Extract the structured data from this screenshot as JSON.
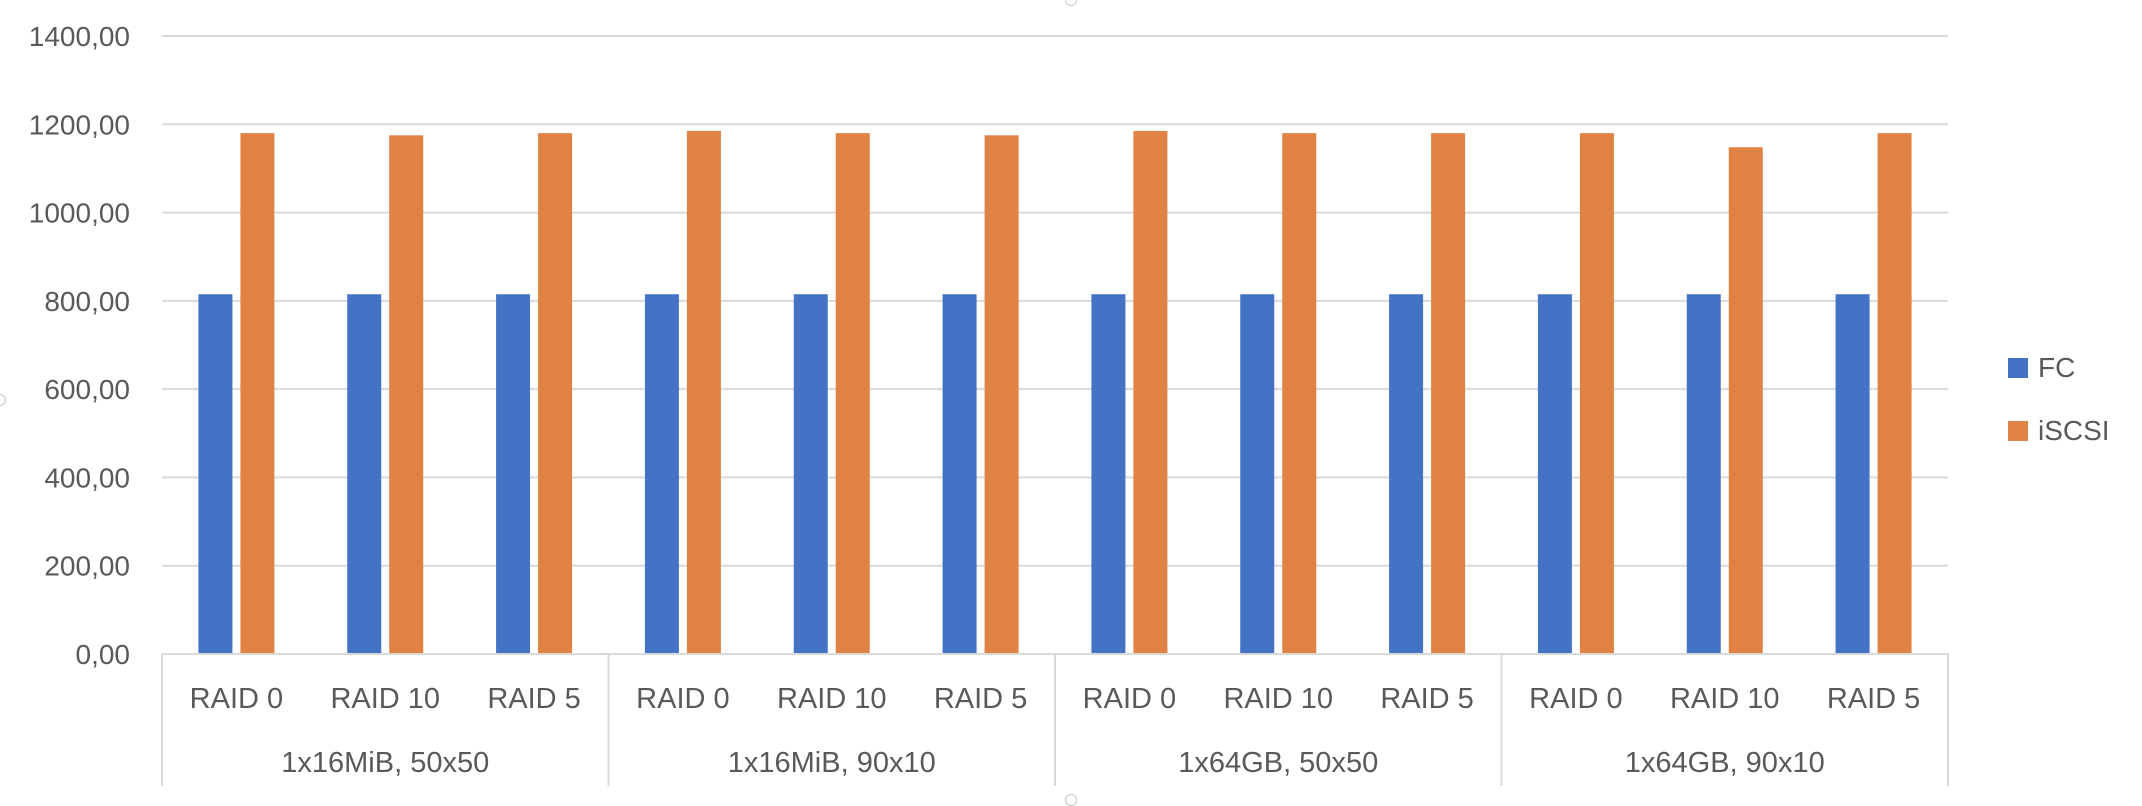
{
  "chart_data": {
    "type": "bar",
    "title": "",
    "xlabel": "",
    "ylabel": "",
    "ylim": [
      0,
      1400
    ],
    "yticks": [
      "0,00",
      "200,00",
      "400,00",
      "600,00",
      "800,00",
      "1000,00",
      "1200,00",
      "1400,00"
    ],
    "groups": [
      {
        "label": "1x16MiB, 50x50",
        "categories": [
          "RAID 0",
          "RAID 10",
          "RAID 5"
        ]
      },
      {
        "label": "1x16MiB, 90x10",
        "categories": [
          "RAID 0",
          "RAID 10",
          "RAID 5"
        ]
      },
      {
        "label": "1x64GB, 50x50",
        "categories": [
          "RAID 0",
          "RAID 10",
          "RAID 5"
        ]
      },
      {
        "label": "1x64GB, 90x10",
        "categories": [
          "RAID 0",
          "RAID 10",
          "RAID 5"
        ]
      }
    ],
    "series": [
      {
        "name": "FC",
        "color": "#4472C4",
        "values": [
          815,
          815,
          815,
          815,
          815,
          815,
          815,
          815,
          815,
          815,
          815,
          815
        ]
      },
      {
        "name": "iSCSI",
        "color": "#E08243",
        "values": [
          1180,
          1175,
          1180,
          1185,
          1180,
          1175,
          1185,
          1180,
          1180,
          1180,
          1148,
          1180
        ]
      }
    ],
    "grid": true,
    "legend_position": "right"
  }
}
